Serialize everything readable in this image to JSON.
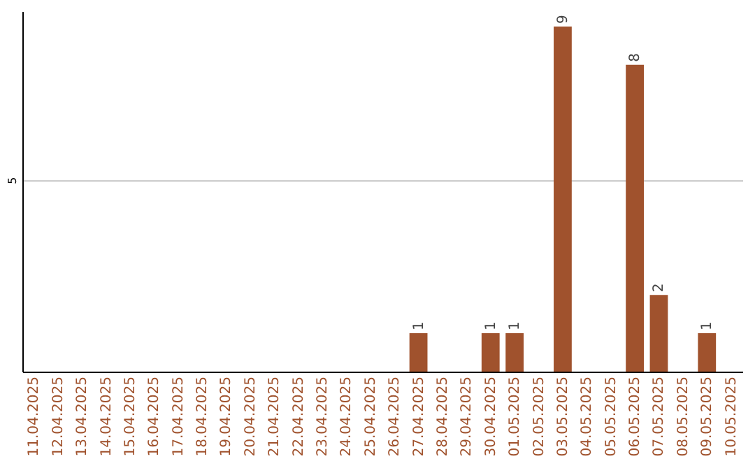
{
  "chart_data": {
    "type": "bar",
    "categories": [
      "11.04.2025",
      "12.04.2025",
      "13.04.2025",
      "14.04.2025",
      "15.04.2025",
      "16.04.2025",
      "17.04.2025",
      "18.04.2025",
      "19.04.2025",
      "20.04.2025",
      "21.04.2025",
      "22.04.2025",
      "23.04.2025",
      "24.04.2025",
      "25.04.2025",
      "26.04.2025",
      "27.04.2025",
      "28.04.2025",
      "29.04.2025",
      "30.04.2025",
      "01.05.2025",
      "02.05.2025",
      "03.05.2025",
      "04.05.2025",
      "05.05.2025",
      "06.05.2025",
      "07.05.2025",
      "08.05.2025",
      "09.05.2025",
      "10.05.2025"
    ],
    "values": [
      null,
      null,
      null,
      null,
      null,
      null,
      null,
      null,
      null,
      null,
      null,
      null,
      null,
      null,
      null,
      null,
      1,
      null,
      null,
      1,
      1,
      null,
      9,
      null,
      null,
      8,
      2,
      null,
      1,
      null
    ],
    "color": "#a0522d",
    "ylim": [
      0,
      9.4
    ],
    "yticks": [
      5
    ],
    "grid": "y",
    "data_labels": true
  }
}
